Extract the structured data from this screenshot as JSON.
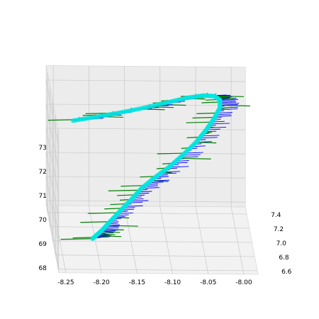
{
  "chart_data": {
    "type": "scatter",
    "projection": "3d",
    "title": "",
    "xlabel": "",
    "ylabel": "",
    "zlabel": "",
    "x_ticks": [
      "-8.25",
      "-8.20",
      "-8.15",
      "-8.10",
      "-8.05",
      "-8.00"
    ],
    "y_ticks": [
      "6.6",
      "6.8",
      "7.0",
      "7.2",
      "7.4"
    ],
    "z_ticks": [
      "68",
      "69",
      "70",
      "71",
      "72",
      "73"
    ],
    "xlim": [
      -8.26,
      -7.98
    ],
    "ylim": [
      6.55,
      7.5
    ],
    "zlim": [
      67.8,
      73.6
    ],
    "grid": true,
    "legend": "none",
    "colors": {
      "trajectory": "#00e5e0",
      "x_quiver": "#0000ff",
      "y_quiver": "#008000",
      "z_quiver": "#ff0000"
    },
    "path_description": "trajectory points (x, y, z) in data units",
    "trajectory": [
      [
        -8.205,
        6.95,
        68.05
      ],
      [
        -8.2,
        6.93,
        68.25
      ],
      [
        -8.192,
        6.92,
        68.5
      ],
      [
        -8.18,
        6.93,
        68.85
      ],
      [
        -8.165,
        6.95,
        69.25
      ],
      [
        -8.15,
        6.98,
        69.6
      ],
      [
        -8.135,
        7.02,
        69.95
      ],
      [
        -8.115,
        7.06,
        70.3
      ],
      [
        -8.095,
        7.1,
        70.6
      ],
      [
        -8.075,
        7.15,
        70.95
      ],
      [
        -8.055,
        7.2,
        71.35
      ],
      [
        -8.04,
        7.24,
        71.75
      ],
      [
        -8.028,
        7.27,
        72.15
      ],
      [
        -8.02,
        7.28,
        72.55
      ],
      [
        -8.02,
        7.27,
        72.9
      ],
      [
        -8.028,
        7.24,
        73.15
      ],
      [
        -8.045,
        7.19,
        73.32
      ],
      [
        -8.07,
        7.12,
        73.42
      ],
      [
        -8.1,
        7.04,
        73.45
      ],
      [
        -8.135,
        6.96,
        73.45
      ],
      [
        -8.17,
        6.9,
        73.42
      ],
      [
        -8.205,
        6.85,
        73.38
      ],
      [
        -8.235,
        6.82,
        73.32
      ]
    ]
  }
}
